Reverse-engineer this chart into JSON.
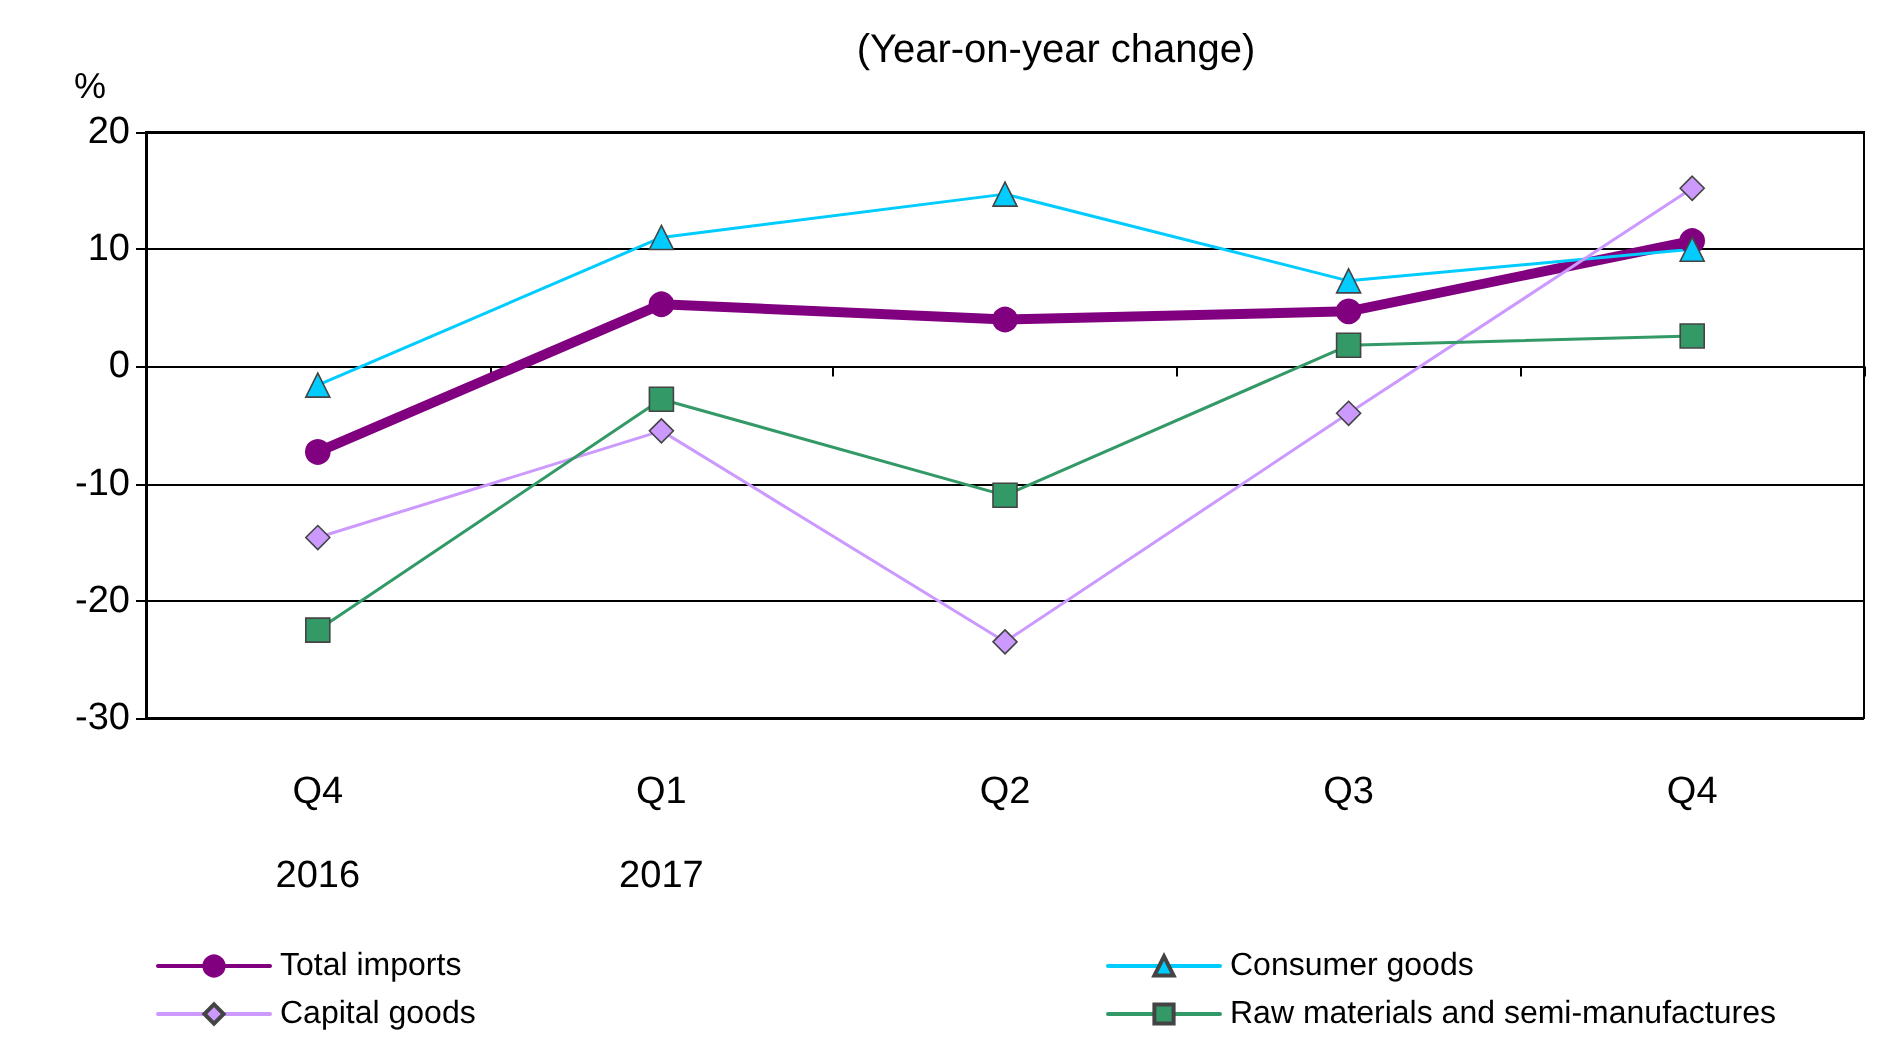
{
  "chart_data": {
    "type": "line",
    "title": "(Year-on-year change)",
    "ylabel": "%",
    "categories": [
      "Q4\n2016",
      "Q1\n2017",
      "Q2",
      "Q3",
      "Q4"
    ],
    "series": [
      {
        "name": "Total imports",
        "color": "#800080",
        "marker": "circle",
        "values": [
          -7.3,
          5.3,
          4.0,
          4.7,
          10.7
        ]
      },
      {
        "name": "Consumer goods",
        "color": "#00ccff",
        "marker": "triangle",
        "values": [
          -1.6,
          11.0,
          14.7,
          7.3,
          10.0
        ]
      },
      {
        "name": "Capital goods",
        "color": "#cc99ff",
        "marker": "diamond",
        "values": [
          -14.6,
          -5.5,
          -23.5,
          -4.0,
          15.2
        ]
      },
      {
        "name": "Raw materials and semi-manufactures",
        "color": "#339966",
        "marker": "square",
        "values": [
          -22.5,
          -2.8,
          -11.0,
          1.8,
          2.6
        ]
      }
    ],
    "ylim": [
      -30,
      20
    ],
    "yticks": [
      -30,
      -20,
      -10,
      0,
      10,
      20
    ],
    "grid": "y",
    "legend": "bottom",
    "line_style": "solid"
  }
}
